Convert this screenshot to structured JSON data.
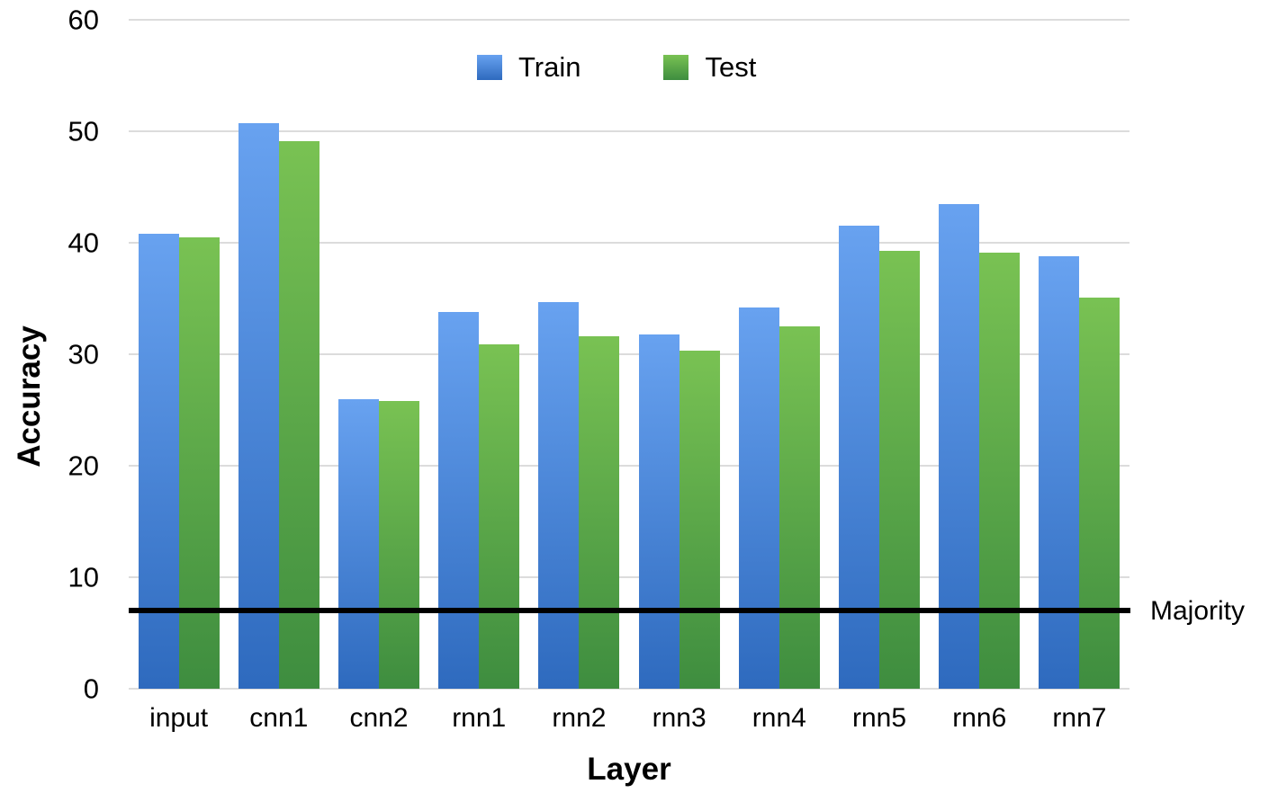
{
  "chart_data": {
    "type": "bar",
    "title": "",
    "xlabel": "Layer",
    "ylabel": "Accuracy",
    "ylim": [
      0,
      60
    ],
    "yticks": [
      0,
      10,
      20,
      30,
      40,
      50,
      60
    ],
    "grid": true,
    "legend_position": "top",
    "categories": [
      "input",
      "cnn1",
      "cnn2",
      "rnn1",
      "rnn2",
      "rnn3",
      "rnn4",
      "rnn5",
      "rnn6",
      "rnn7"
    ],
    "series": [
      {
        "name": "Train",
        "color_top": "#68a2f0",
        "color_bottom": "#2e6abe",
        "values": [
          40.8,
          50.7,
          26.0,
          33.8,
          34.7,
          31.8,
          34.2,
          41.5,
          43.5,
          38.8
        ]
      },
      {
        "name": "Test",
        "color_top": "#79c253",
        "color_bottom": "#3e8d3f",
        "values": [
          40.5,
          49.1,
          25.8,
          30.9,
          31.6,
          30.3,
          32.5,
          39.3,
          39.1,
          35.1
        ]
      }
    ],
    "reference_line": {
      "label": "Majority",
      "value": 7,
      "color": "#000000"
    },
    "gridline_color": "#dcdcdc"
  }
}
